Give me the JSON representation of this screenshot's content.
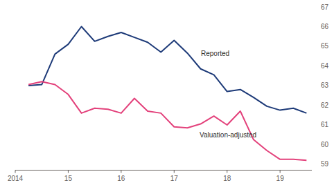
{
  "chart_data": {
    "type": "line",
    "x": [
      2014.25,
      2014.5,
      2014.75,
      2015,
      2015.25,
      2015.5,
      2015.75,
      2016,
      2016.25,
      2016.5,
      2016.75,
      2017,
      2017.25,
      2017.5,
      2017.75,
      2018,
      2018.25,
      2018.5,
      2018.75,
      2019,
      2019.25,
      2019.5
    ],
    "series": [
      {
        "name": "Reported",
        "color": "#1d3a78",
        "values": [
          63.0,
          63.05,
          64.6,
          65.1,
          66.0,
          65.25,
          65.5,
          65.7,
          65.45,
          65.2,
          64.7,
          65.3,
          64.65,
          63.85,
          63.55,
          62.7,
          62.8,
          62.4,
          61.95,
          61.75,
          61.85,
          61.6
        ]
      },
      {
        "name": "Valuation-adjusted",
        "color": "#e3417b",
        "values": [
          63.05,
          63.2,
          63.05,
          62.55,
          61.6,
          61.85,
          61.8,
          61.6,
          62.35,
          61.7,
          61.6,
          60.9,
          60.85,
          61.05,
          61.45,
          61.0,
          61.7,
          60.25,
          59.7,
          59.25,
          59.25,
          59.2
        ]
      }
    ],
    "xlim": [
      2014,
      2019.6
    ],
    "xticks": [
      2014,
      {
        "value": 2015,
        "label": "15"
      },
      {
        "value": 2016,
        "label": "16"
      },
      {
        "value": 2017,
        "label": "17"
      },
      {
        "value": 2018,
        "label": "18"
      },
      {
        "value": 2019,
        "label": "19"
      }
    ],
    "ylim": [
      58.7,
      67
    ],
    "yticks": [
      59,
      60,
      61,
      62,
      63,
      64,
      65,
      66,
      67
    ],
    "grid": false
  }
}
